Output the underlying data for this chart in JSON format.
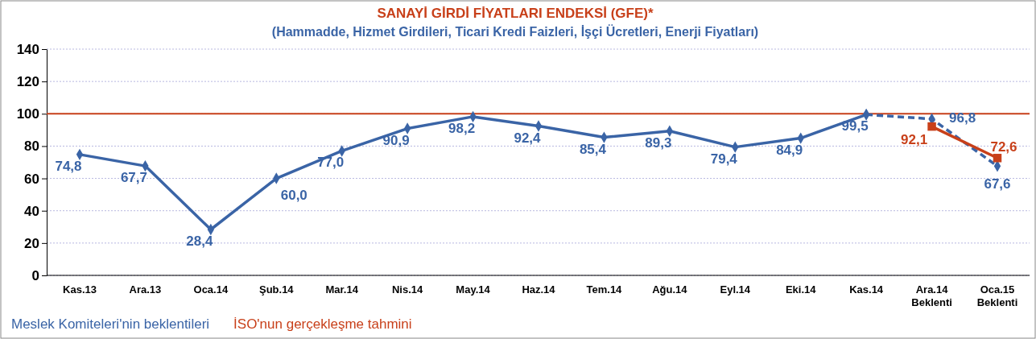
{
  "chart_data": {
    "type": "line",
    "title": "SANAYİ GİRDİ FİYATLARI ENDEKSİ (GFE)*",
    "subtitle": "(Hammadde, Hizmet Girdileri, Ticari Kredi Faizleri, İşçi Ücretleri, Enerji Fiyatları)",
    "categories": [
      "Kas.13",
      "Ara.13",
      "Oca.14",
      "Şub.14",
      "Mar.14",
      "Nis.14",
      "May.14",
      "Haz.14",
      "Tem.14",
      "Ağu.14",
      "Eyl.14",
      "Eki.14",
      "Kas.14",
      "Ara.14\nBeklenti",
      "Oca.15\nBeklenti"
    ],
    "series": [
      {
        "name": "Meslek Komiteleri'nin beklentileri",
        "color": "#3a64a6",
        "marker": "diamond",
        "line_style": "solid",
        "values": [
          74.8,
          67.7,
          28.4,
          60.0,
          77.0,
          90.9,
          98.2,
          92.4,
          85.4,
          89.3,
          79.4,
          84.9,
          99.5,
          null,
          null
        ],
        "value_labels": [
          "74,8",
          "67,7",
          "28,4",
          "60,0",
          "77,0",
          "90,9",
          "98,2",
          "92,4",
          "85,4",
          "89,3",
          "79,4",
          "84,9",
          "99,5",
          null,
          null
        ]
      },
      {
        "color": "#3a64a6",
        "marker": "diamond",
        "line_style": "dashed",
        "values": [
          null,
          null,
          null,
          null,
          null,
          null,
          null,
          null,
          null,
          null,
          null,
          null,
          99.5,
          96.8,
          67.6
        ],
        "value_labels": [
          null,
          null,
          null,
          null,
          null,
          null,
          null,
          null,
          null,
          null,
          null,
          null,
          null,
          "96,8",
          "67,6"
        ]
      },
      {
        "name": "İSO'nun gerçekleşme tahmini",
        "color": "#c8401a",
        "marker": "square",
        "line_style": "solid",
        "values": [
          null,
          null,
          null,
          null,
          null,
          null,
          null,
          null,
          null,
          null,
          null,
          null,
          null,
          92.1,
          72.6
        ],
        "value_labels": [
          null,
          null,
          null,
          null,
          null,
          null,
          null,
          null,
          null,
          null,
          null,
          null,
          null,
          "92,1",
          "72,6"
        ]
      }
    ],
    "ylim": [
      0,
      140
    ],
    "yticks": [
      0,
      20,
      40,
      60,
      80,
      100,
      120,
      140
    ],
    "grid": "y",
    "legend": "bottom",
    "ref_lines": [
      {
        "axis": "y",
        "value": 100,
        "color": "#c8401a"
      }
    ]
  }
}
